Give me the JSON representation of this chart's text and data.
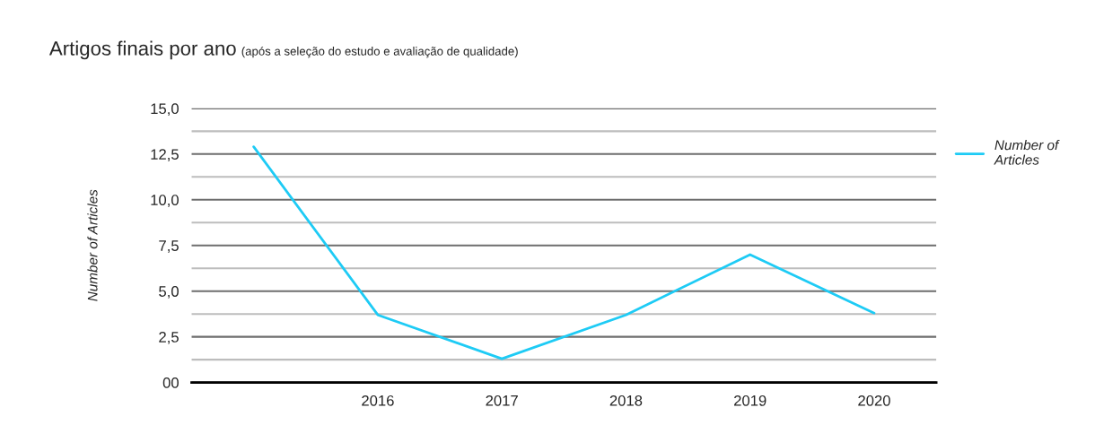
{
  "chart_data": {
    "type": "line",
    "title": "Artigos finais por ano",
    "subtitle": "(após a seleção do estudo e avaliação de qualidade)",
    "ylabel": "Number of Articles",
    "categories": [
      null,
      "2016",
      "2017",
      "2018",
      "2019",
      "2020"
    ],
    "series": [
      {
        "name": "Number of Articles",
        "color": "#1ecbf5",
        "values": [
          12.9,
          3.7,
          1.3,
          3.7,
          7.0,
          3.8
        ]
      }
    ],
    "ylim": [
      0,
      15
    ],
    "yticks": [
      {
        "value": 0,
        "label": "00"
      },
      {
        "value": 1.25,
        "label": null
      },
      {
        "value": 2.5,
        "label": "2,5"
      },
      {
        "value": 3.75,
        "label": null
      },
      {
        "value": 5,
        "label": "5,0"
      },
      {
        "value": 6.25,
        "label": null
      },
      {
        "value": 7.5,
        "label": "7,5"
      },
      {
        "value": 8.75,
        "label": null
      },
      {
        "value": 10,
        "label": "10,0"
      },
      {
        "value": 11.25,
        "label": null
      },
      {
        "value": 12.5,
        "label": "12,5"
      },
      {
        "value": 13.75,
        "label": null
      },
      {
        "value": 15,
        "label": "15,0"
      }
    ],
    "grid": "y",
    "legend": "right",
    "marker": "none",
    "line_style": "solid"
  }
}
